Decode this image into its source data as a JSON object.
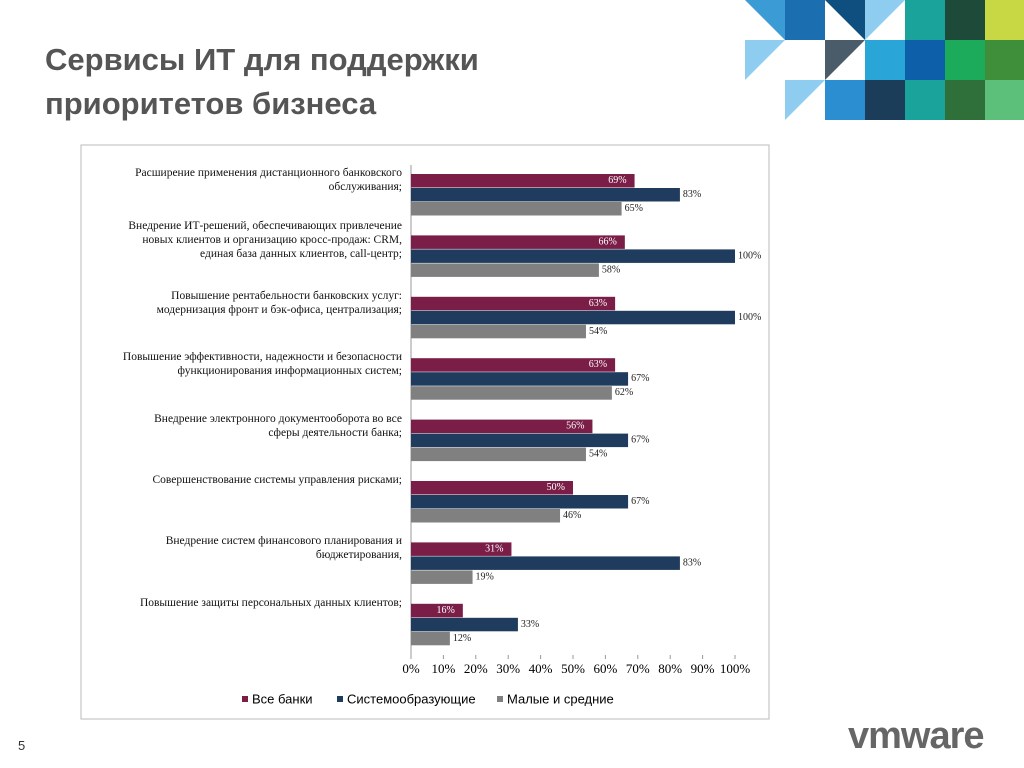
{
  "slide_title": "Сервисы ИТ для поддержки\nприоритетов бизнеса",
  "slide_number": "5",
  "logo": "vmware",
  "chart_data": {
    "type": "hbar",
    "categories": [
      "Расширение применения дистанционного банковского\nобслуживания;",
      "Внедрение ИТ-решений, обеспечивающих привлечение\nновых клиентов и организацию кросс-продаж: CRM,\nединая база данных клиентов, call-центр;",
      "Повышение рентабельности банковских услуг:\nмодернизация фронт и бэк-офиса, централизация;",
      "Повышение эффективности, надежности и безопасности\nфункционирования информационных систем;",
      "Внедрение электронного документооборота во все\nсферы деятельности банка;",
      "Совершенствование системы управления рисками;",
      "Внедрение систем финансового планирования и\nбюджетирования,",
      "Повышение защиты персональных данных клиентов;"
    ],
    "series": [
      {
        "name": "Все банки",
        "color": "#7a1d47",
        "values": [
          69,
          66,
          63,
          63,
          56,
          50,
          31,
          16
        ],
        "value_labels": [
          "69%",
          "66%",
          "63%",
          "63%",
          "56%",
          "50%",
          "31%",
          "16%"
        ]
      },
      {
        "name": "Системообразующие",
        "color": "#1f3b5e",
        "values": [
          83,
          100,
          100,
          67,
          67,
          67,
          83,
          33
        ],
        "value_labels": [
          "83%",
          "100%",
          "100%",
          "67%",
          "67%",
          "67%",
          "83%",
          "33%"
        ]
      },
      {
        "name": "Малые и средние",
        "color": "#808080",
        "values": [
          65,
          58,
          54,
          62,
          54,
          46,
          19,
          12
        ],
        "value_labels": [
          "65%",
          "58%",
          "54%",
          "62%",
          "54%",
          "46%",
          "19%",
          "12%"
        ]
      }
    ],
    "xlim": [
      0,
      100
    ],
    "xticks": [
      {
        "value": 0,
        "label": "0%"
      },
      {
        "value": 10,
        "label": "10%"
      },
      {
        "value": 20,
        "label": "20%"
      },
      {
        "value": 30,
        "label": "30%"
      },
      {
        "value": 40,
        "label": "40%"
      },
      {
        "value": 50,
        "label": "50%"
      },
      {
        "value": 60,
        "label": "60%"
      },
      {
        "value": 70,
        "label": "70%"
      },
      {
        "value": 80,
        "label": "80%"
      },
      {
        "value": 90,
        "label": "90%"
      },
      {
        "value": 100,
        "label": "100%"
      }
    ],
    "legend": "bottom"
  }
}
